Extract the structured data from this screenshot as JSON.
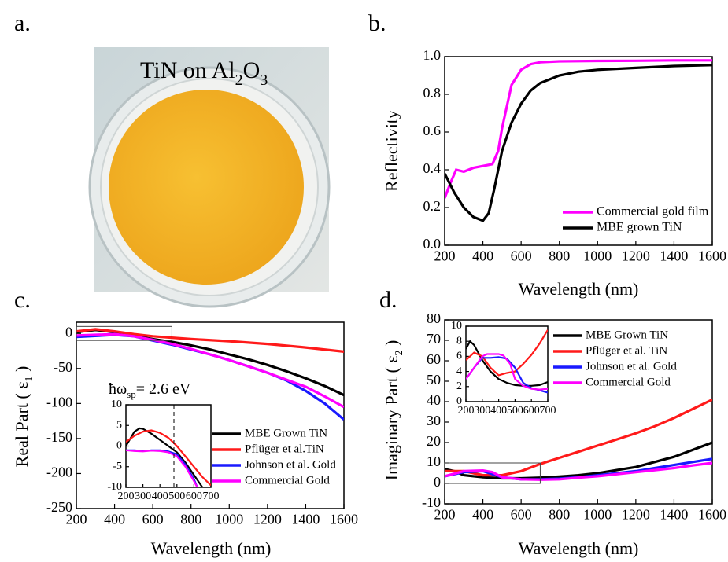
{
  "photo": {
    "panel": "a.",
    "title_parts": [
      "TiN on Al",
      "2",
      "O",
      "3"
    ]
  },
  "chart_data": [
    {
      "type": "line",
      "panel": "b.",
      "xlabel": "Wavelength (nm)",
      "ylabel_parts": [
        "Reflectivity"
      ],
      "xlim": [
        200,
        1600
      ],
      "ylim": [
        0,
        1.0
      ],
      "xticks": [
        200,
        400,
        600,
        800,
        1000,
        1200,
        1400,
        1600
      ],
      "yticks": [
        {
          "value": 0,
          "label": "0.0"
        },
        0.2,
        0.4,
        0.6,
        0.8,
        {
          "value": 1,
          "label": "1.0"
        }
      ],
      "series": [
        {
          "name": "Commercial gold film",
          "color": "#ff00ff",
          "x": [
            200,
            230,
            260,
            300,
            350,
            400,
            450,
            480,
            500,
            550,
            600,
            650,
            700,
            800,
            1000,
            1200,
            1400,
            1600
          ],
          "values": [
            0.25,
            0.33,
            0.4,
            0.39,
            0.41,
            0.42,
            0.43,
            0.5,
            0.62,
            0.85,
            0.93,
            0.96,
            0.97,
            0.975,
            0.977,
            0.978,
            0.98,
            0.98
          ]
        },
        {
          "name": "MBE grown TiN",
          "color": "#000000",
          "x": [
            200,
            250,
            300,
            350,
            400,
            430,
            460,
            500,
            550,
            600,
            650,
            700,
            800,
            900,
            1000,
            1200,
            1400,
            1600
          ],
          "values": [
            0.38,
            0.28,
            0.2,
            0.15,
            0.13,
            0.17,
            0.3,
            0.5,
            0.65,
            0.75,
            0.82,
            0.86,
            0.9,
            0.92,
            0.93,
            0.94,
            0.95,
            0.955
          ]
        }
      ]
    },
    {
      "type": "line",
      "panel": "c.",
      "xlabel": "Wavelength (nm)",
      "ylabel_parts": [
        "Real Part ( ε",
        "1",
        " )"
      ],
      "annotation_parts": [
        "ħω",
        "sp",
        "= 2.6 eV"
      ],
      "xlim": [
        200,
        1600
      ],
      "ylim": [
        -250,
        16
      ],
      "xticks": [
        200,
        400,
        600,
        800,
        1000,
        1200,
        1400,
        1600
      ],
      "yticks": [
        -250,
        -200,
        -150,
        -100,
        -50,
        0
      ],
      "series": [
        {
          "name": "MBE Grown TiN",
          "color": "#000000",
          "x": [
            200,
            300,
            400,
            500,
            600,
            700,
            800,
            900,
            1000,
            1100,
            1200,
            1300,
            1400,
            1500,
            1600
          ],
          "values": [
            2,
            5,
            2,
            -3,
            -8,
            -12,
            -17,
            -23,
            -30,
            -37,
            -45,
            -54,
            -64,
            -75,
            -88
          ]
        },
        {
          "name": "Pflüger et al.TiN",
          "color": "#ff1a1a",
          "x": [
            200,
            300,
            400,
            500,
            600,
            700,
            800,
            1000,
            1200,
            1400,
            1600
          ],
          "values": [
            3,
            6,
            3,
            -1,
            -4,
            -6,
            -8,
            -11,
            -15,
            -20,
            -26
          ]
        },
        {
          "name": "Johnson et al. Gold",
          "color": "#1a1aff",
          "x": [
            200,
            400,
            500,
            600,
            700,
            800,
            900,
            1000,
            1100,
            1200,
            1300,
            1400,
            1500,
            1600
          ],
          "values": [
            -5,
            -2,
            -4,
            -10,
            -16,
            -23,
            -30,
            -38,
            -47,
            -56,
            -67,
            -82,
            -100,
            -123
          ]
        },
        {
          "name": "Commercial Gold",
          "color": "#ff00ff",
          "x": [
            200,
            400,
            500,
            600,
            700,
            800,
            900,
            1000,
            1100,
            1200,
            1300,
            1400,
            1500,
            1600
          ],
          "values": [
            -3,
            -1,
            -4,
            -9,
            -15,
            -22,
            -30,
            -38,
            -47,
            -56,
            -66,
            -76,
            -90,
            -105
          ]
        }
      ],
      "inset": {
        "xlim": [
          200,
          700
        ],
        "ylim": [
          -10,
          10
        ],
        "xticks": [
          200,
          300,
          400,
          500,
          600,
          700
        ],
        "yticks": [
          -10,
          -5,
          0,
          5,
          10
        ],
        "series": [
          {
            "color": "#000000",
            "x": [
              200,
              250,
              280,
              300,
              350,
              400,
              450,
              500,
              550,
              600,
              650
            ],
            "values": [
              0,
              3.5,
              4.3,
              4.2,
              3,
              1.5,
              0,
              -1.5,
              -4,
              -7,
              -10
            ]
          },
          {
            "color": "#ff1a1a",
            "x": [
              200,
              250,
              300,
              350,
              400,
              450,
              500,
              550,
              600,
              650,
              700
            ],
            "values": [
              1,
              2.5,
              3.5,
              3.8,
              3.2,
              2,
              0,
              -2.5,
              -5,
              -7.5,
              -9.5
            ]
          },
          {
            "color": "#1a1aff",
            "x": [
              200,
              250,
              300,
              350,
              400,
              450,
              500,
              550,
              600,
              620
            ],
            "values": [
              -1,
              -1,
              -1.2,
              -1,
              -1,
              -1.3,
              -2,
              -4.5,
              -8,
              -10
            ]
          },
          {
            "color": "#ff00ff",
            "x": [
              200,
              250,
              300,
              350,
              400,
              450,
              500,
              550,
              600,
              620
            ],
            "values": [
              -1,
              -1.2,
              -1.3,
              -1.1,
              -1.2,
              -1.5,
              -2.5,
              -5,
              -8.5,
              -10
            ]
          }
        ]
      }
    },
    {
      "type": "line",
      "panel": "d.",
      "xlabel": "Wavelength (nm)",
      "ylabel_parts": [
        "Imaginary Part ( ε",
        "2",
        " )"
      ],
      "xlim": [
        200,
        1600
      ],
      "ylim": [
        -10,
        80
      ],
      "xticks": [
        200,
        400,
        600,
        800,
        1000,
        1200,
        1400,
        1600
      ],
      "yticks": [
        -10,
        0,
        10,
        20,
        30,
        40,
        50,
        60,
        70,
        80
      ],
      "series": [
        {
          "name": "MBE Grown TiN",
          "color": "#000000",
          "x": [
            200,
            250,
            300,
            400,
            500,
            600,
            700,
            800,
            900,
            1000,
            1100,
            1200,
            1300,
            1400,
            1500,
            1600
          ],
          "values": [
            7,
            6,
            4,
            3,
            2.5,
            2.5,
            2.8,
            3.3,
            4,
            5,
            6.5,
            8,
            10.5,
            13,
            16.5,
            20
          ]
        },
        {
          "name": "Pflüger et al. TiN",
          "color": "#ff1a1a",
          "x": [
            200,
            300,
            400,
            500,
            600,
            700,
            800,
            900,
            1000,
            1100,
            1200,
            1300,
            1400,
            1500,
            1600
          ],
          "values": [
            6,
            6,
            4,
            4,
            6,
            9.5,
            12.5,
            15.5,
            18.5,
            21.5,
            24.5,
            28,
            32,
            36.5,
            41
          ]
        },
        {
          "name": "Johnson et al. Gold",
          "color": "#1a1aff",
          "x": [
            200,
            300,
            400,
            500,
            600,
            700,
            800,
            900,
            1000,
            1100,
            1200,
            1300,
            1400,
            1500,
            1600
          ],
          "values": [
            3.5,
            5.5,
            6,
            3,
            2,
            2,
            2.3,
            3,
            4,
            5,
            6,
            7.5,
            9,
            10.5,
            12
          ]
        },
        {
          "name": "Commercial Gold",
          "color": "#ff00ff",
          "x": [
            200,
            300,
            400,
            450,
            500,
            600,
            700,
            800,
            900,
            1000,
            1100,
            1200,
            1300,
            1400,
            1500,
            1600
          ],
          "values": [
            3.5,
            6,
            6.3,
            5.5,
            3,
            2,
            1.8,
            2,
            2.8,
            3.5,
            4.5,
            5.5,
            6.5,
            7.5,
            8.8,
            10
          ]
        }
      ],
      "inset": {
        "xlim": [
          200,
          700
        ],
        "ylim": [
          0,
          10
        ],
        "xticks": [
          200,
          300,
          400,
          500,
          600,
          700
        ],
        "yticks": [
          0,
          2,
          4,
          6,
          8,
          10
        ],
        "series": [
          {
            "color": "#000000",
            "x": [
              200,
              225,
              250,
              300,
              350,
              400,
              450,
              500,
              550,
              600,
              650,
              700
            ],
            "values": [
              7,
              8,
              7.5,
              5.5,
              4,
              3,
              2.5,
              2.2,
              2.1,
              2.1,
              2.2,
              2.6
            ]
          },
          {
            "color": "#ff1a1a",
            "x": [
              200,
              250,
              300,
              350,
              400,
              450,
              500,
              550,
              600,
              650,
              700
            ],
            "values": [
              5.5,
              6.5,
              6,
              4.5,
              3.5,
              3.8,
              4,
              5,
              6.2,
              7.7,
              9.5
            ]
          },
          {
            "color": "#1a1aff",
            "x": [
              200,
              250,
              300,
              350,
              400,
              450,
              500,
              550,
              600,
              650,
              700
            ],
            "values": [
              3,
              4.5,
              5.8,
              5.8,
              5.9,
              5.7,
              4.5,
              2.5,
              1.8,
              1.5,
              1.2
            ]
          },
          {
            "color": "#ff00ff",
            "x": [
              200,
              250,
              300,
              330,
              400,
              430,
              470,
              500,
              550,
              600,
              650,
              700
            ],
            "values": [
              3,
              4.5,
              6,
              6.3,
              6.3,
              6.1,
              5,
              3,
              2.1,
              1.7,
              1.6,
              1.7
            ]
          }
        ]
      }
    }
  ]
}
